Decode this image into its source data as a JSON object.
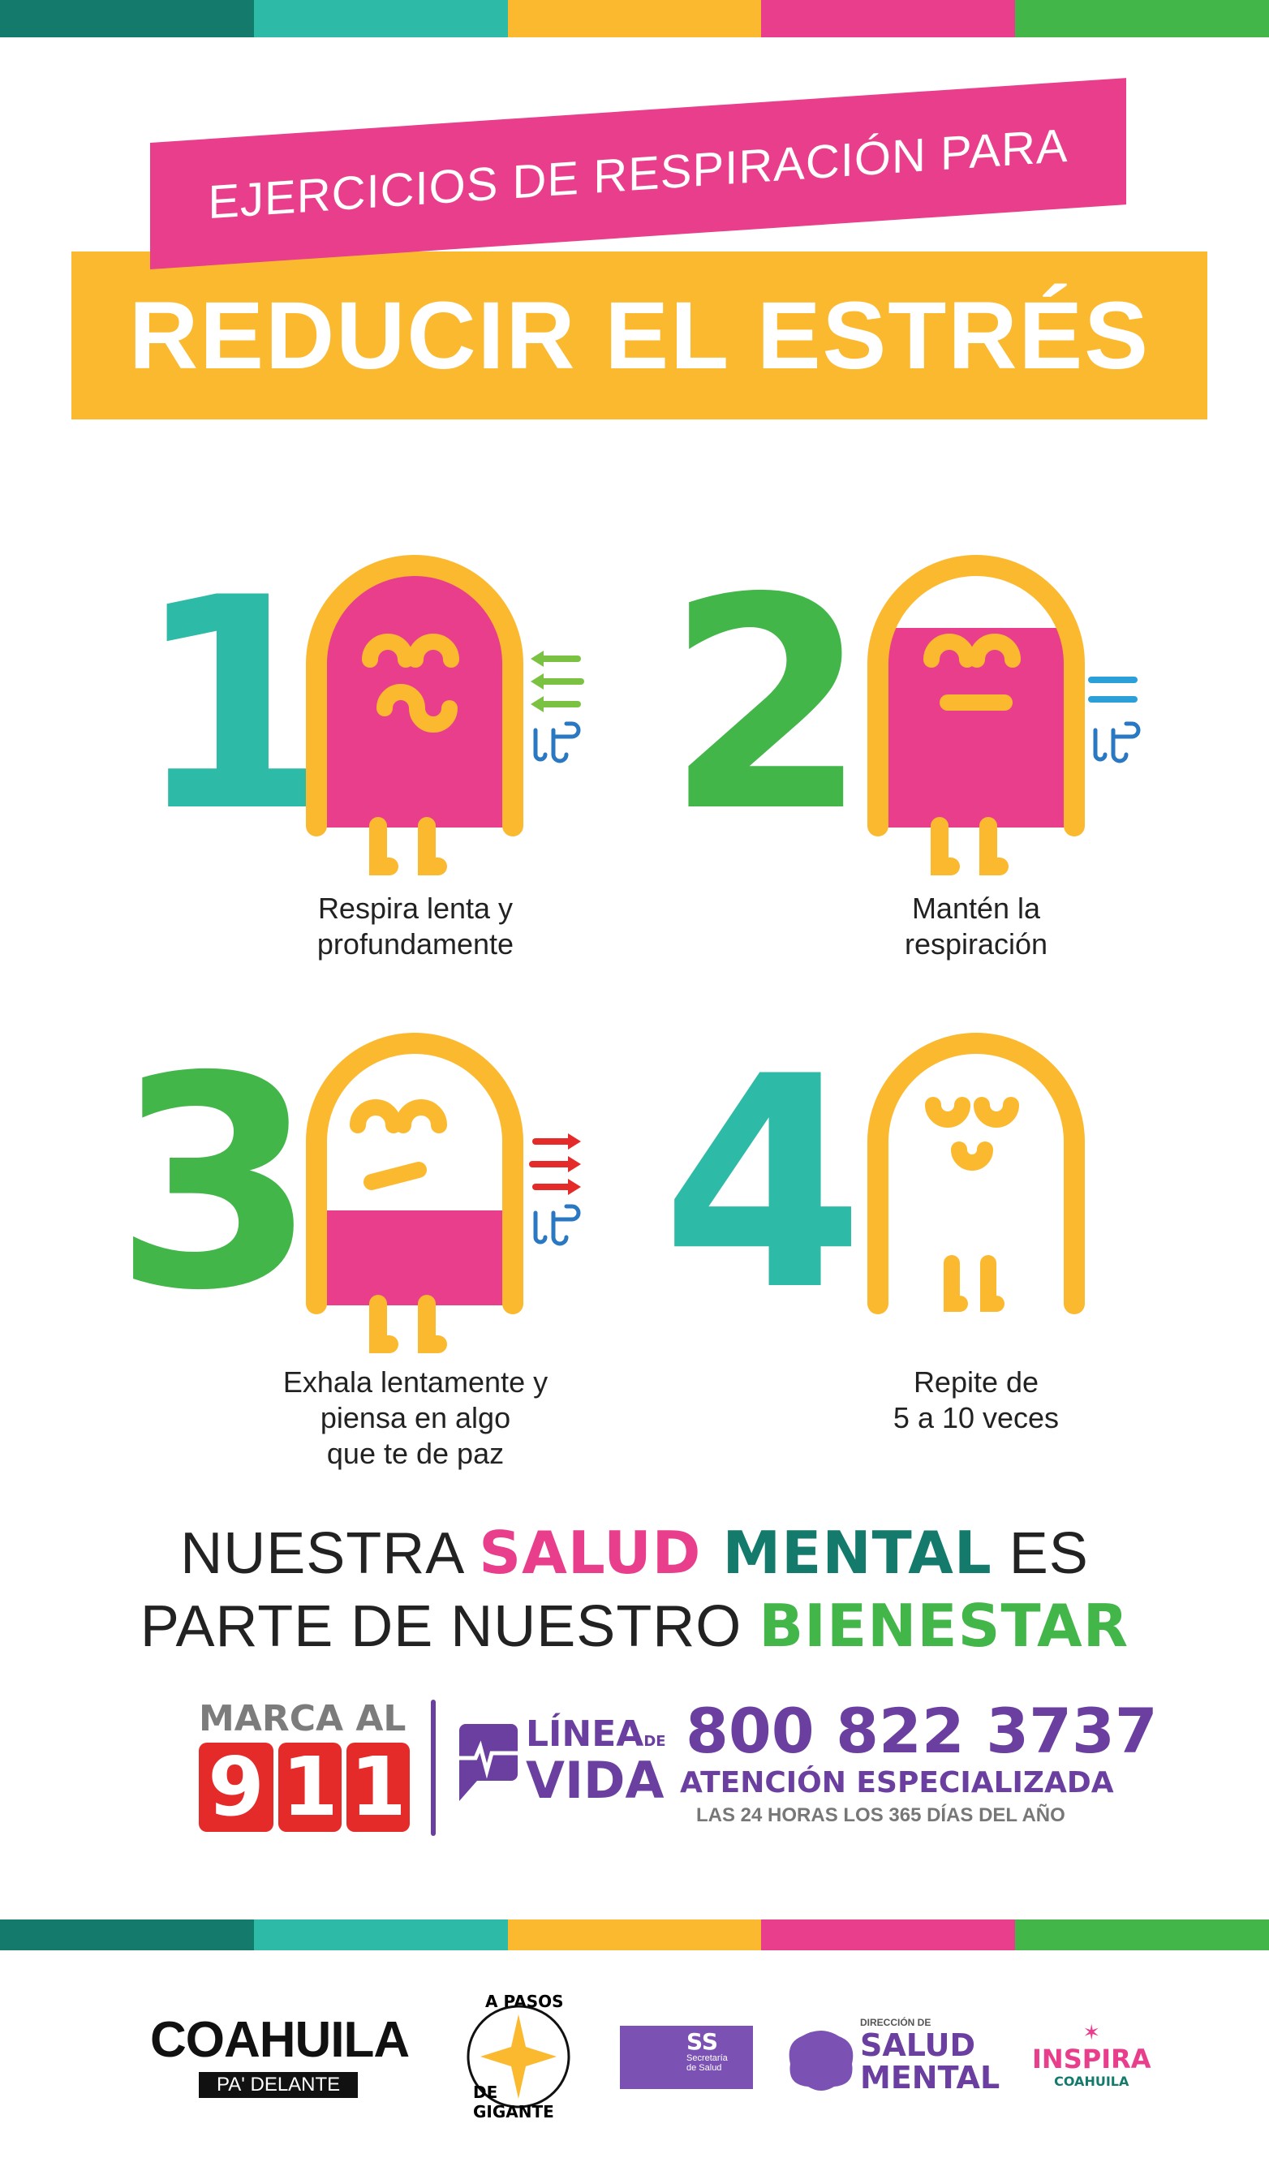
{
  "colors": {
    "teal_dark": "#137a6c",
    "teal": "#2dbaa6",
    "yellow": "#fbb930",
    "pink": "#e83e8c",
    "green": "#42b649",
    "purple": "#6a3fa0",
    "red": "#e52a2a",
    "blue": "#2a78c2",
    "arrow_green": "#7cc242"
  },
  "header": {
    "line1": "EJERCICIOS DE RESPIRACIÓN PARA",
    "line2": "REDUCIR EL ESTRÉS"
  },
  "steps": [
    {
      "number": "1",
      "caption": [
        "Respira lenta y",
        "profundamente"
      ],
      "fill_level": 1.0,
      "breath_icon": "inhale-arrows-icon"
    },
    {
      "number": "2",
      "caption": [
        "Mantén la",
        "respiración"
      ],
      "fill_level": 0.78,
      "breath_icon": "hold-equals-icon"
    },
    {
      "number": "3",
      "caption": [
        "Exhala lentamente y",
        "piensa en algo",
        "que te de paz"
      ],
      "fill_level": 0.35,
      "breath_icon": "exhale-arrows-icon"
    },
    {
      "number": "4",
      "caption": [
        "Repite de",
        "5 a 10 veces"
      ],
      "fill_level": 0,
      "breath_icon": "none"
    }
  ],
  "slogan": {
    "l1a": "NUESTRA ",
    "l1b": "SALUD ",
    "l1c": "MENTAL",
    "l1d": " ES",
    "l2a": "PARTE DE NUESTRO ",
    "l2b": "BIENESTAR"
  },
  "contact": {
    "marca": "MARCA AL",
    "emergency": [
      "9",
      "1",
      "1"
    ],
    "linea1": "LÍNEA",
    "linea_de": "DE",
    "linea2": "VIDA",
    "phone": "800 822 3737",
    "attention": "ATENCIÓN ESPECIALIZADA",
    "hours": "LAS 24 HORAS LOS 365 DÍAS DEL AÑO"
  },
  "logos": {
    "coahuila": "COAHUILA",
    "coahuila_sub": "PA' DELANTE",
    "pasos_top": "A PASOS",
    "pasos_bottom": "DE GIGANTE",
    "ss": "SS",
    "ss_sub1": "Secretaría",
    "ss_sub2": "de Salud",
    "dsm_top": "DIRECCIÓN DE",
    "dsm1": "SALUD",
    "dsm2": "MENTAL",
    "inspira": "INSPIRA",
    "inspira_sub": "COAHUILA"
  }
}
